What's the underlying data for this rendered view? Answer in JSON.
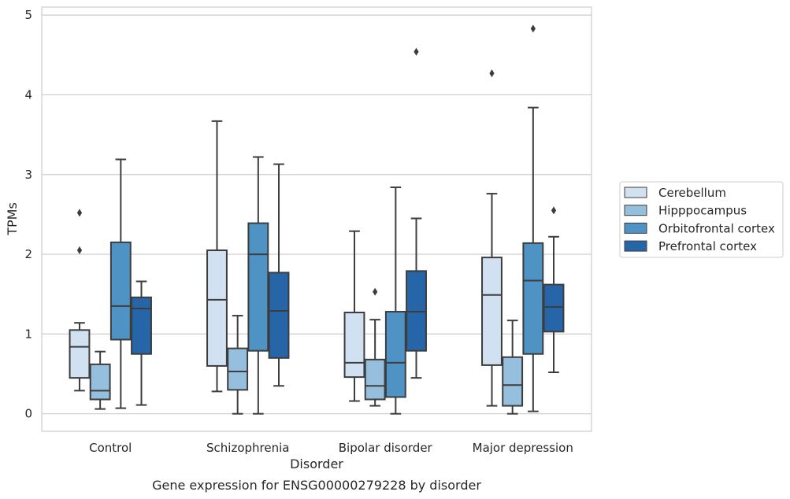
{
  "chart_data": {
    "type": "boxplot",
    "caption": "Gene expression for ENSG00000279228 by disorder",
    "xlabel": "Disorder",
    "ylabel": "TPMs",
    "ylim": [
      -0.22,
      5.1
    ],
    "yticks": [
      0,
      1,
      2,
      3,
      4,
      5
    ],
    "grid": true,
    "legend_position": "right",
    "categories": [
      "Control",
      "Schizophrenia",
      "Bipolar disorder",
      "Major depression"
    ],
    "series": [
      {
        "name": "Cerebellum",
        "color": "#d1e1f1",
        "boxes": [
          {
            "whislo": 0.29,
            "q1": 0.45,
            "med": 0.84,
            "q3": 1.05,
            "whishi": 1.14,
            "fliers": [
              2.05,
              2.52
            ]
          },
          {
            "whislo": 0.28,
            "q1": 0.6,
            "med": 1.43,
            "q3": 2.05,
            "whishi": 3.67,
            "fliers": []
          },
          {
            "whislo": 0.16,
            "q1": 0.46,
            "med": 0.64,
            "q3": 1.27,
            "whishi": 2.29,
            "fliers": []
          },
          {
            "whislo": 0.1,
            "q1": 0.61,
            "med": 1.49,
            "q3": 1.96,
            "whishi": 2.76,
            "fliers": [
              4.27
            ]
          }
        ]
      },
      {
        "name": "Hipppocampus",
        "color": "#95bfdd",
        "boxes": [
          {
            "whislo": 0.06,
            "q1": 0.18,
            "med": 0.29,
            "q3": 0.62,
            "whishi": 0.78,
            "fliers": []
          },
          {
            "whislo": 0.0,
            "q1": 0.3,
            "med": 0.53,
            "q3": 0.82,
            "whishi": 1.23,
            "fliers": []
          },
          {
            "whislo": 0.1,
            "q1": 0.18,
            "med": 0.35,
            "q3": 0.68,
            "whishi": 1.18,
            "fliers": [
              1.53
            ]
          },
          {
            "whislo": 0.0,
            "q1": 0.1,
            "med": 0.36,
            "q3": 0.71,
            "whishi": 1.17,
            "fliers": []
          }
        ]
      },
      {
        "name": "Orbitofrontal cortex",
        "color": "#4f93c4",
        "boxes": [
          {
            "whislo": 0.07,
            "q1": 0.93,
            "med": 1.35,
            "q3": 2.15,
            "whishi": 3.19,
            "fliers": []
          },
          {
            "whislo": 0.0,
            "q1": 0.79,
            "med": 2.0,
            "q3": 2.39,
            "whishi": 3.22,
            "fliers": []
          },
          {
            "whislo": 0.0,
            "q1": 0.21,
            "med": 0.64,
            "q3": 1.28,
            "whishi": 2.84,
            "fliers": []
          },
          {
            "whislo": 0.03,
            "q1": 0.75,
            "med": 1.67,
            "q3": 2.14,
            "whishi": 3.84,
            "fliers": [
              4.83
            ]
          }
        ]
      },
      {
        "name": "Prefrontal cortex",
        "color": "#2565a8",
        "boxes": [
          {
            "whislo": 0.11,
            "q1": 0.75,
            "med": 1.32,
            "q3": 1.46,
            "whishi": 1.66,
            "fliers": []
          },
          {
            "whislo": 0.35,
            "q1": 0.7,
            "med": 1.29,
            "q3": 1.77,
            "whishi": 3.13,
            "fliers": []
          },
          {
            "whislo": 0.45,
            "q1": 0.79,
            "med": 1.28,
            "q3": 1.79,
            "whishi": 2.45,
            "fliers": [
              4.54
            ]
          },
          {
            "whislo": 0.52,
            "q1": 1.03,
            "med": 1.34,
            "q3": 1.62,
            "whishi": 2.22,
            "fliers": [
              2.55
            ]
          }
        ]
      }
    ]
  }
}
